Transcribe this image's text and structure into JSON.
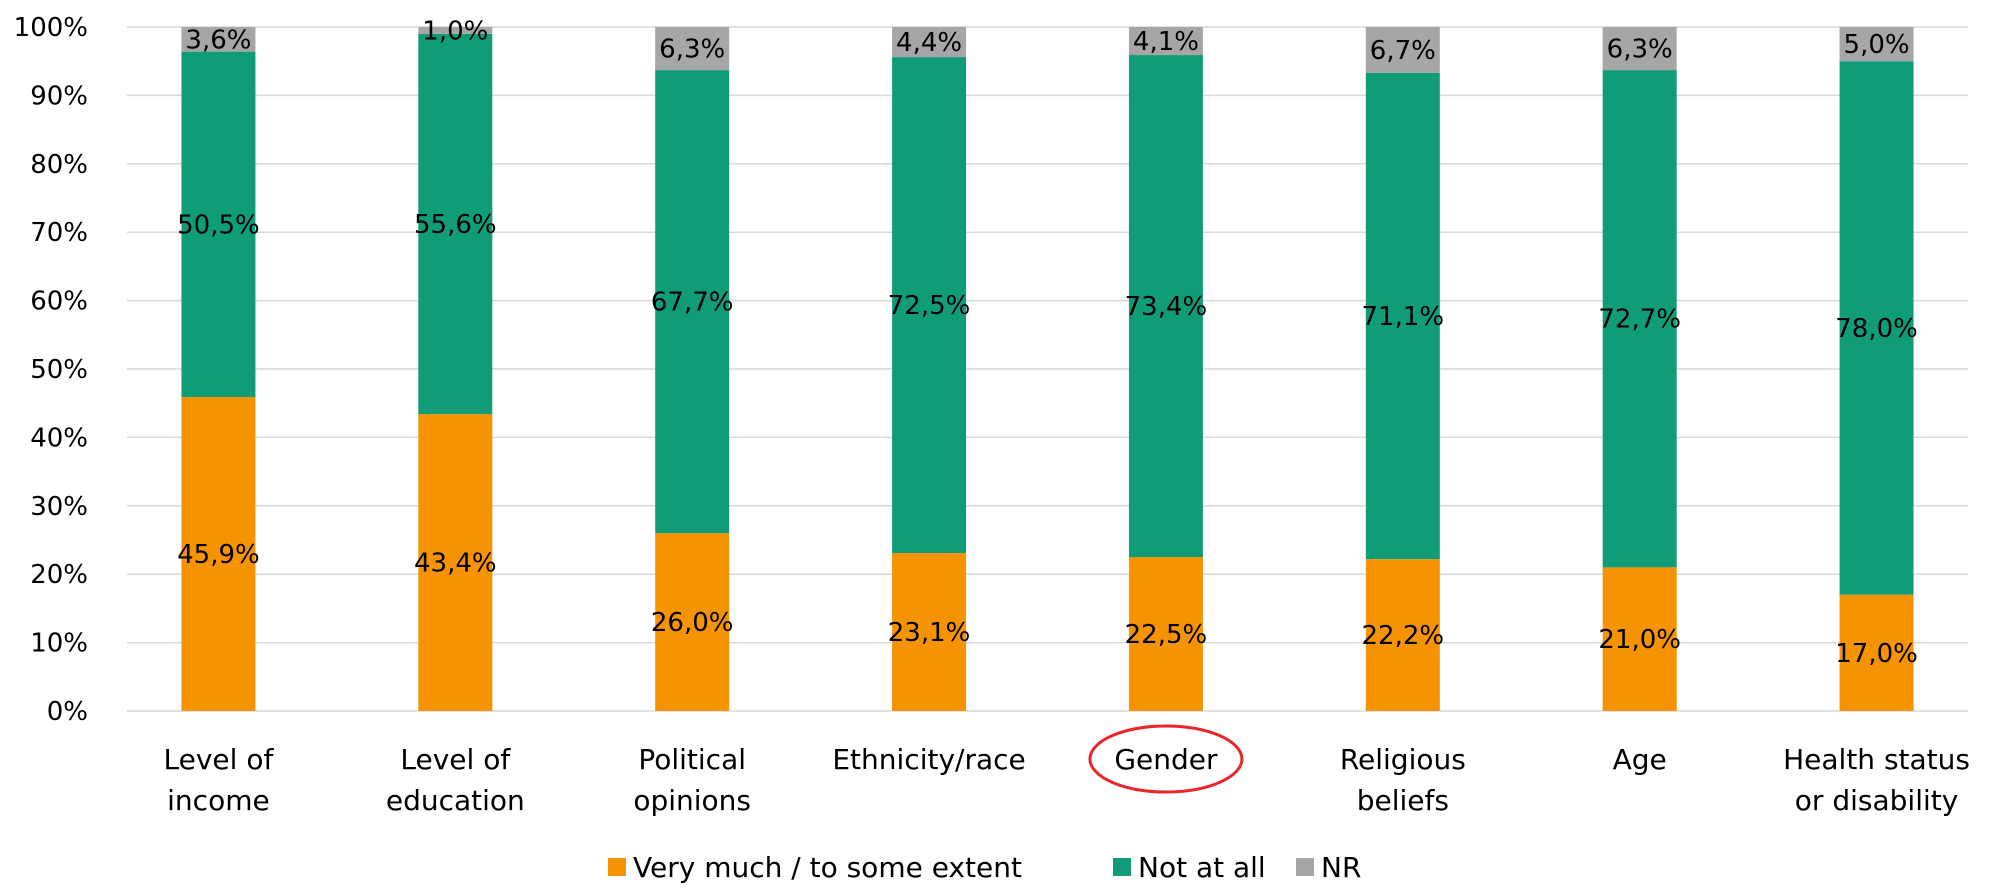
{
  "chart_data": {
    "type": "bar",
    "stacked": true,
    "percent": true,
    "categories": [
      [
        "Level of",
        "income"
      ],
      [
        "Level of",
        "education"
      ],
      [
        "Political",
        "opinions"
      ],
      [
        "Ethnicity/race"
      ],
      [
        "Gender"
      ],
      [
        "Religious",
        "beliefs"
      ],
      [
        "Age"
      ],
      [
        "Health status",
        "or disability"
      ]
    ],
    "highlighted_category_index": 4,
    "highlight_color": "#e8262c",
    "series": [
      {
        "name": "Very much / to some extent",
        "color": "#f59302",
        "values": [
          45.9,
          43.4,
          26.0,
          23.1,
          22.5,
          22.2,
          21.0,
          17.0
        ],
        "labels": [
          "45,9%",
          "43,4%",
          "26,0%",
          "23,1%",
          "22,5%",
          "22,2%",
          "21,0%",
          "17,0%"
        ]
      },
      {
        "name": "Not at all",
        "color": "#119c78",
        "values": [
          50.5,
          55.6,
          67.7,
          72.5,
          73.4,
          71.1,
          72.7,
          78.0
        ],
        "labels": [
          "50,5%",
          "55,6%",
          "67,7%",
          "72,5%",
          "73,4%",
          "71,1%",
          "72,7%",
          "78,0%"
        ]
      },
      {
        "name": "NR",
        "color": "#a6a6a6",
        "values": [
          3.6,
          1.0,
          6.3,
          4.4,
          4.1,
          6.7,
          6.3,
          5.0
        ],
        "labels": [
          "3,6%",
          "1,0%",
          "6,3%",
          "4,4%",
          "4,1%",
          "6,7%",
          "6,3%",
          "5,0%"
        ]
      }
    ],
    "ylim": [
      0,
      100
    ],
    "yticks": [
      "0%",
      "10%",
      "20%",
      "30%",
      "40%",
      "50%",
      "60%",
      "70%",
      "80%",
      "90%",
      "100%"
    ],
    "grid": true,
    "legend_position": "bottom",
    "title": "",
    "xlabel": "",
    "ylabel": ""
  }
}
